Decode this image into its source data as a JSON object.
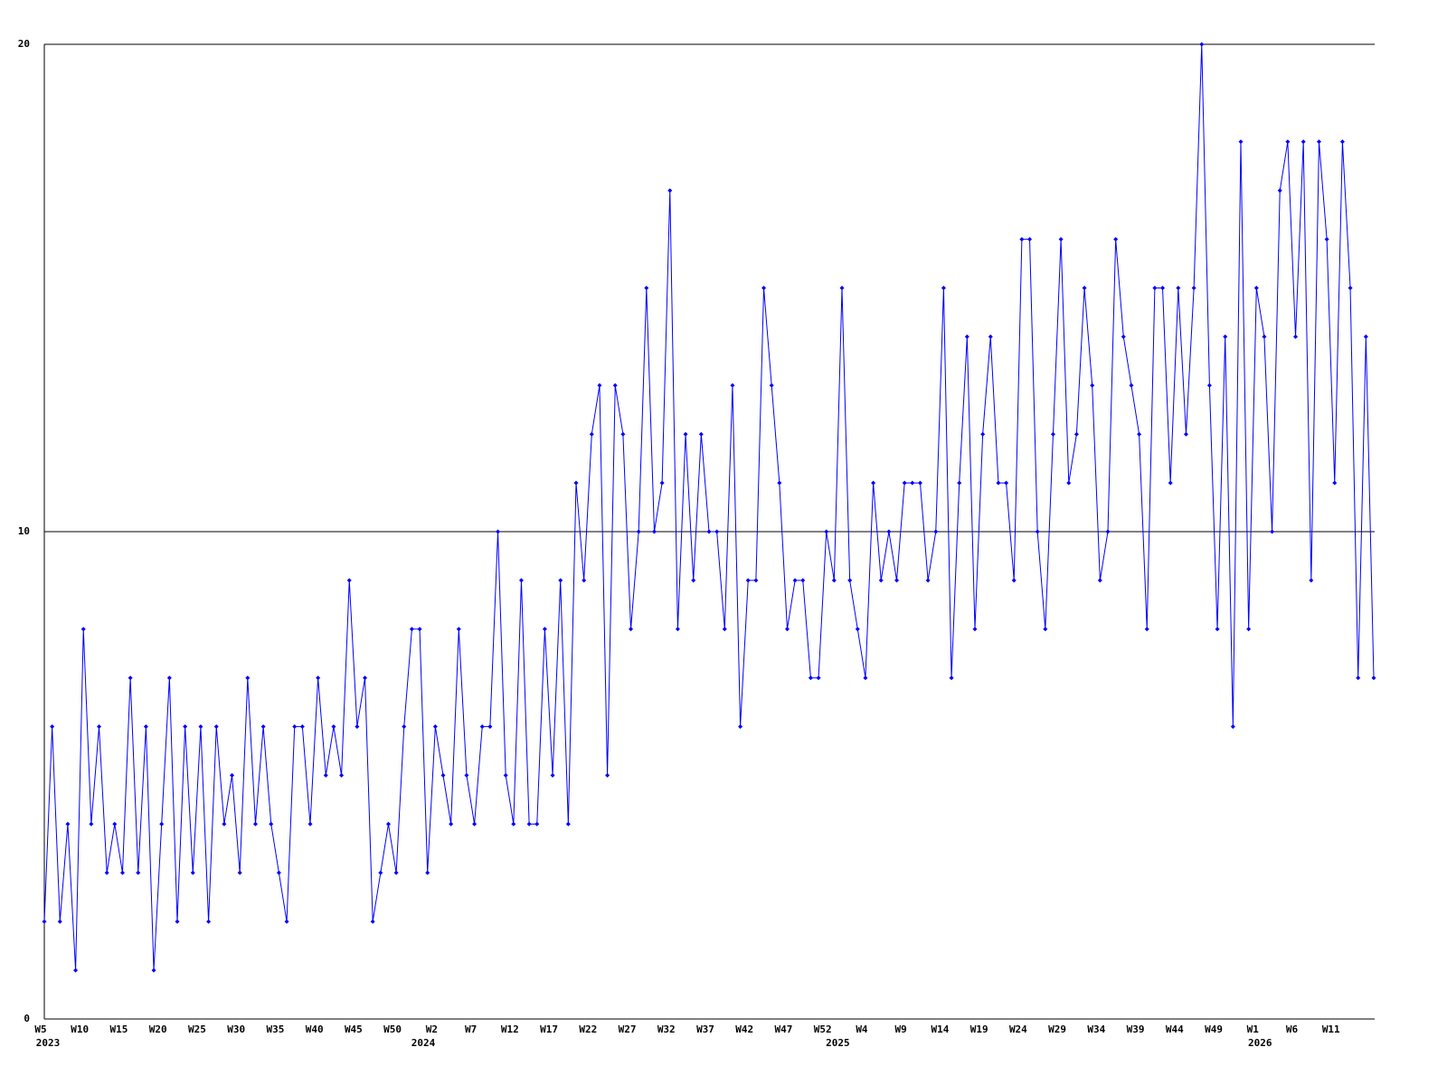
{
  "chart_data": {
    "type": "line",
    "color": "#0000ff",
    "categories": [
      "W5",
      null,
      null,
      null,
      null,
      "W10",
      null,
      null,
      null,
      null,
      "W15",
      null,
      null,
      null,
      null,
      "W20",
      null,
      null,
      null,
      null,
      "W25",
      null,
      null,
      null,
      null,
      "W30",
      null,
      null,
      null,
      null,
      "W35",
      null,
      null,
      null,
      null,
      "W40",
      null,
      null,
      null,
      null,
      "W45",
      null,
      null,
      null,
      null,
      "W50",
      null,
      null,
      null,
      null,
      "W2",
      null,
      null,
      null,
      null,
      "W7",
      null,
      null,
      null,
      null,
      "W12",
      null,
      null,
      null,
      null,
      "W17",
      null,
      null,
      null,
      null,
      "W22",
      null,
      null,
      null,
      null,
      "W27",
      null,
      null,
      null,
      null,
      "W32",
      null,
      null,
      null,
      null,
      "W37",
      null,
      null,
      null,
      null,
      "W42",
      null,
      null,
      null,
      null,
      "W47",
      null,
      null,
      null,
      null,
      "W52",
      null,
      null,
      null,
      null,
      "W4",
      null,
      null,
      null,
      null,
      "W9",
      null,
      null,
      null,
      null,
      "W14",
      null,
      null,
      null,
      null,
      "W19",
      null,
      null,
      null,
      null,
      "W24",
      null,
      null,
      null,
      null,
      "W29",
      null,
      null,
      null,
      null,
      "W34",
      null,
      null,
      null,
      null,
      "W39",
      null,
      null,
      null,
      null,
      "W44",
      null,
      null,
      null,
      null,
      "W49",
      null,
      null,
      null,
      null,
      "W1",
      null,
      null,
      null,
      null,
      "W6",
      null,
      null,
      null,
      null,
      "W11",
      null,
      null,
      null,
      null,
      null
    ],
    "category_years": [
      "2023",
      null,
      null,
      null,
      null,
      null,
      null,
      null,
      null,
      null,
      null,
      null,
      null,
      null,
      null,
      null,
      null,
      null,
      null,
      null,
      null,
      null,
      null,
      null,
      null,
      null,
      null,
      null,
      null,
      null,
      null,
      null,
      null,
      null,
      null,
      null,
      null,
      null,
      null,
      null,
      null,
      null,
      null,
      null,
      null,
      null,
      null,
      null,
      "2024",
      null,
      null,
      null,
      null,
      null,
      null,
      null,
      null,
      null,
      null,
      null,
      null,
      null,
      null,
      null,
      null,
      null,
      null,
      null,
      null,
      null,
      null,
      null,
      null,
      null,
      null,
      null,
      null,
      null,
      null,
      null,
      null,
      null,
      null,
      null,
      null,
      null,
      null,
      null,
      null,
      null,
      null,
      null,
      null,
      null,
      null,
      null,
      null,
      null,
      null,
      null,
      null,
      "2025",
      null,
      null,
      null,
      null,
      null,
      null,
      null,
      null,
      null,
      null,
      null,
      null,
      null,
      null,
      null,
      null,
      null,
      null,
      null,
      null,
      null,
      null,
      null,
      null,
      null,
      null,
      null,
      null,
      null,
      null,
      null,
      null,
      null,
      null,
      null,
      null,
      null,
      null,
      null,
      null,
      null,
      null,
      null,
      null,
      null,
      null,
      null,
      null,
      null,
      null,
      null,
      null,
      null,
      "2026",
      null,
      null,
      null,
      null,
      null,
      null,
      null,
      null,
      null,
      null,
      null,
      null,
      null,
      null,
      null,
      null
    ],
    "values": [
      2,
      6,
      2,
      4,
      1,
      8,
      4,
      6,
      3,
      4,
      3,
      7,
      3,
      6,
      1,
      4,
      7,
      2,
      6,
      3,
      6,
      2,
      6,
      4,
      5,
      3,
      7,
      4,
      6,
      4,
      3,
      2,
      6,
      6,
      4,
      7,
      5,
      6,
      5,
      9,
      6,
      7,
      2,
      3,
      4,
      3,
      6,
      8,
      8,
      3,
      6,
      5,
      4,
      8,
      5,
      4,
      6,
      6,
      10,
      5,
      4,
      9,
      4,
      4,
      8,
      5,
      9,
      4,
      11,
      9,
      12,
      13,
      5,
      13,
      12,
      8,
      10,
      15,
      10,
      11,
      17,
      8,
      12,
      9,
      12,
      10,
      10,
      8,
      13,
      6,
      9,
      9,
      15,
      13,
      11,
      8,
      9,
      9,
      7,
      7,
      10,
      9,
      15,
      9,
      8,
      7,
      11,
      9,
      10,
      9,
      11,
      11,
      11,
      9,
      10,
      15,
      7,
      11,
      14,
      8,
      12,
      14,
      11,
      11,
      9,
      16,
      16,
      10,
      8,
      12,
      16,
      11,
      12,
      15,
      13,
      9,
      10,
      16,
      14,
      13,
      12,
      8,
      15,
      15,
      11,
      15,
      12,
      15,
      20,
      13,
      8,
      14,
      6,
      18,
      8,
      15,
      14,
      10,
      17,
      18,
      14,
      18,
      9,
      18,
      16,
      11,
      18,
      15,
      7,
      14,
      7
    ],
    "ylim": [
      0,
      20
    ],
    "yticks": [
      0,
      10,
      20
    ],
    "grid": true
  }
}
